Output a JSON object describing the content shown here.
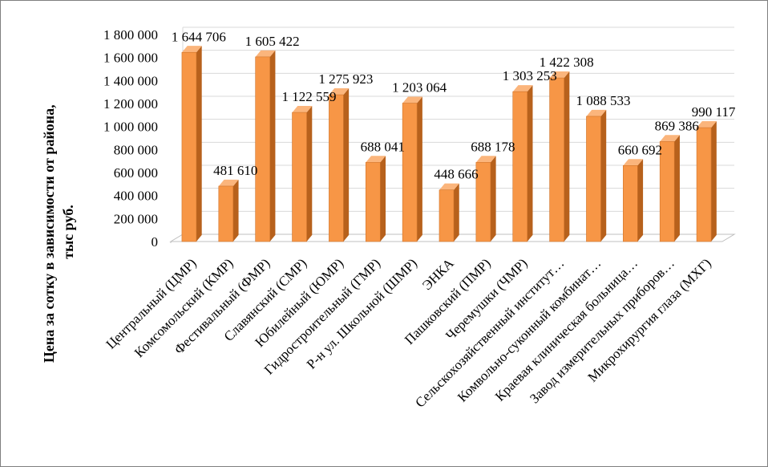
{
  "chart_data": {
    "type": "bar",
    "style": "3d-column",
    "ylabel_lines": [
      "Цена за сотку в зависимости от района,",
      "тыс руб."
    ],
    "xlabel": "",
    "ylim": [
      0,
      1800000
    ],
    "ytick_step": 200000,
    "yticks": [
      "0",
      "200 000",
      "400 000",
      "600 000",
      "800 000",
      "1 000 000",
      "1 200 000",
      "1 400 000",
      "1 600 000",
      "1 800 000"
    ],
    "grid": true,
    "legend": "none",
    "categories": [
      "Центральный (ЦМР)",
      "Комсомольский (КМР)",
      "Фестивальный (ФМР)",
      "Славянский (СМР)",
      "Юбилейный (ЮМР)",
      "Гидростроительный (ГМР)",
      "Р-н ул. Школьной (ШМР)",
      "ЭНКА",
      "Пашковский (ПМР)",
      "Черемушки (ЧМР)",
      "Сельскохозяйственный институт…",
      "Комвольно-суконный комбинат…",
      "Краевая клиническая больница…",
      "Завод измерительных приборов…",
      "Микрохирургия глаза (МХГ)"
    ],
    "values": [
      1644706,
      481610,
      1605422,
      1122559,
      1275923,
      688041,
      1203064,
      448666,
      688178,
      1303253,
      1422308,
      1088533,
      660692,
      869386,
      990117
    ],
    "value_labels": [
      "1 644 706",
      "481 610",
      "1 605 422",
      "1 122 559",
      "1 275 923",
      "688 041",
      "1 203 064",
      "448 666",
      "688 178",
      "1 303 253",
      "1 422 308",
      "1 088 533",
      "660 692",
      "869 386",
      "990 117"
    ],
    "colors": {
      "bar_front": "#f79646",
      "bar_side": "#b7611c",
      "bar_top": "#fbb57c",
      "bar_edge": "#d0742a",
      "grid": "#d9d9d9",
      "floor": "#bfbfbf"
    }
  }
}
